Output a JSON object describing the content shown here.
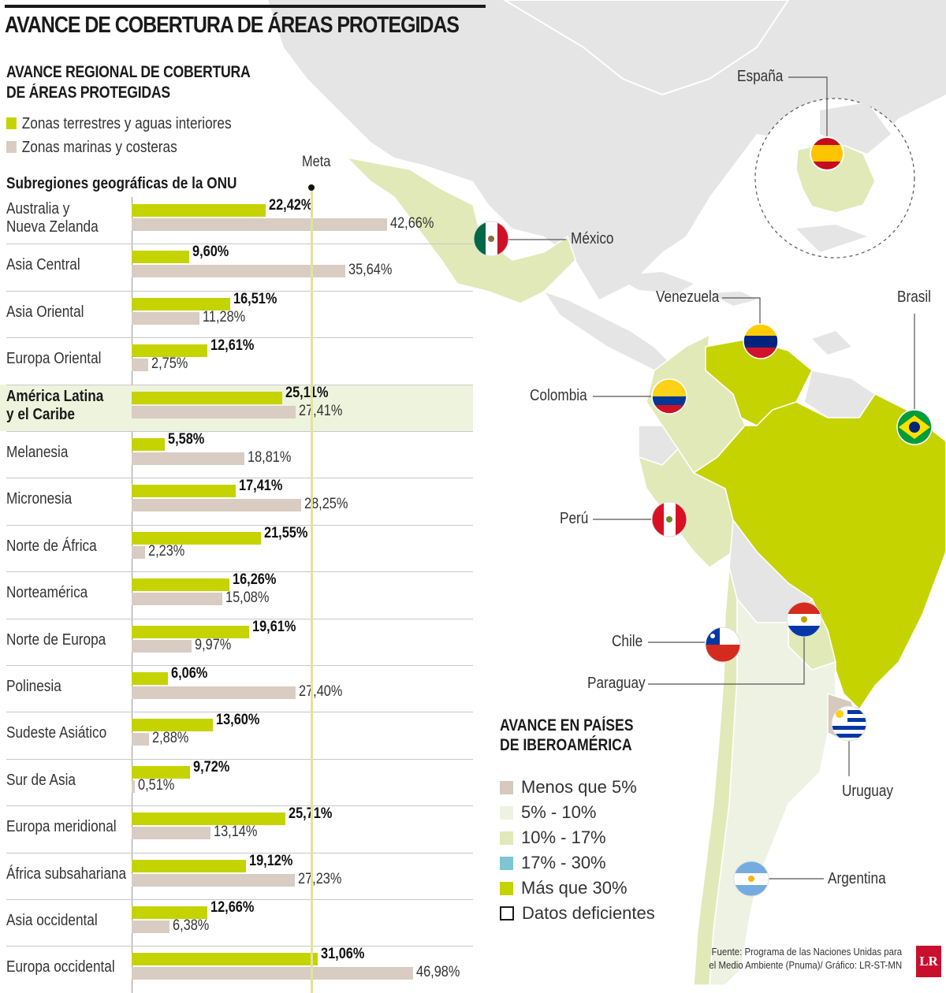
{
  "title": "AVANCE DE COBERTURA DE ÁREAS PROTEGIDAS",
  "regional_title_line1": "AVANCE REGIONAL DE COBERTURA",
  "regional_title_line2": "DE ÁREAS PROTEGIDAS",
  "legend": {
    "terrestrial": "Zonas terrestres y aguas interiores",
    "marine": "Zonas marinas y costeras"
  },
  "colors": {
    "terrestrial": "#c5d300",
    "marine": "#d9ccc2",
    "highlight_row": "#eef3dd",
    "meta_line": "#dfe59a",
    "map_gray": "#e5e5e5",
    "map_light": "#eef2e2",
    "map_mid": "#e1e9b8",
    "map_strong": "#c5d300",
    "map_tan": "#d7c9bd"
  },
  "chart_data": {
    "type": "bar",
    "orientation": "horizontal",
    "category_header": "Subregiones geográficas de la ONU",
    "meta_label": "Meta",
    "meta_value": 30,
    "highlighted_category": "América Latina y el Caribe",
    "categories": [
      [
        "Australia y",
        "Nueva Zelanda"
      ],
      [
        "Asia Central"
      ],
      [
        "Asia Oriental"
      ],
      [
        "Europa Oriental"
      ],
      [
        "América Latina",
        "y el Caribe"
      ],
      [
        "Melanesia"
      ],
      [
        "Micronesia"
      ],
      [
        "Norte de África"
      ],
      [
        " Norteamérica"
      ],
      [
        "Norte de Europa"
      ],
      [
        "Polinesia"
      ],
      [
        "Sudeste Asiático"
      ],
      [
        "Sur de Asia"
      ],
      [
        "Europa meridional"
      ],
      [
        "África subsahariana"
      ],
      [
        "Asia occidental"
      ],
      [
        "Europa occidental"
      ]
    ],
    "series": [
      {
        "name": "Zonas terrestres y aguas interiores",
        "values": [
          22.42,
          9.6,
          16.51,
          12.61,
          25.11,
          5.58,
          17.41,
          21.55,
          16.26,
          19.61,
          6.06,
          13.6,
          9.72,
          25.71,
          19.12,
          12.66,
          31.06
        ],
        "labels": [
          "22,42%",
          "9,60%",
          "16,51%",
          "12,61%",
          "25,11%",
          "5,58%",
          "17,41%",
          "21,55%",
          "16,26%",
          "19,61%",
          "6,06%",
          "13,60%",
          "9,72%",
          "25,71%",
          "19,12%",
          "12,66%",
          "31,06%"
        ]
      },
      {
        "name": "Zonas marinas y costeras",
        "values": [
          42.66,
          35.64,
          11.28,
          2.75,
          27.41,
          18.81,
          28.25,
          2.23,
          15.08,
          9.97,
          27.4,
          2.88,
          0.51,
          13.14,
          27.23,
          6.38,
          46.98
        ],
        "labels": [
          "42,66%",
          "35,64%",
          "11,28%",
          "2,75%",
          "27,41%",
          "18,81%",
          "28,25%",
          "2,23%",
          "15,08%",
          "9,97%",
          "27,40%",
          "2,88%",
          "0,51%",
          "13,14%",
          "27,23%",
          "6,38%",
          "46,98%"
        ]
      }
    ],
    "xlim": [
      0,
      50
    ]
  },
  "map": {
    "countries": [
      "España",
      "México",
      "Venezuela",
      "Brasil",
      "Colombia",
      "Perú",
      "Chile",
      "Paraguay",
      "Uruguay",
      "Argentina"
    ],
    "iber_title_line1": "AVANCE EN PAÍSES",
    "iber_title_line2": "DE IBEROAMÉRICA",
    "iber_legend": [
      {
        "label": "Menos que 5%",
        "color": "#d7c9bd"
      },
      {
        "label": "5% - 10%",
        "color": "#eef2e2"
      },
      {
        "label": "10% - 17%",
        "color": "#e1e9b8"
      },
      {
        "label": "17% - 30%",
        "color": "#7fc6d4"
      },
      {
        "label": "Más que 30%",
        "color": "#c5d300"
      },
      {
        "label": "Datos deficientes",
        "color": "#ffffff"
      }
    ]
  },
  "source_line1": "Fuente: Programa de las Naciones Unidas para",
  "source_line2": "el Medio Ambiente (Pnuma)/ Gráfico: LR-ST-MN",
  "logo": "LR"
}
